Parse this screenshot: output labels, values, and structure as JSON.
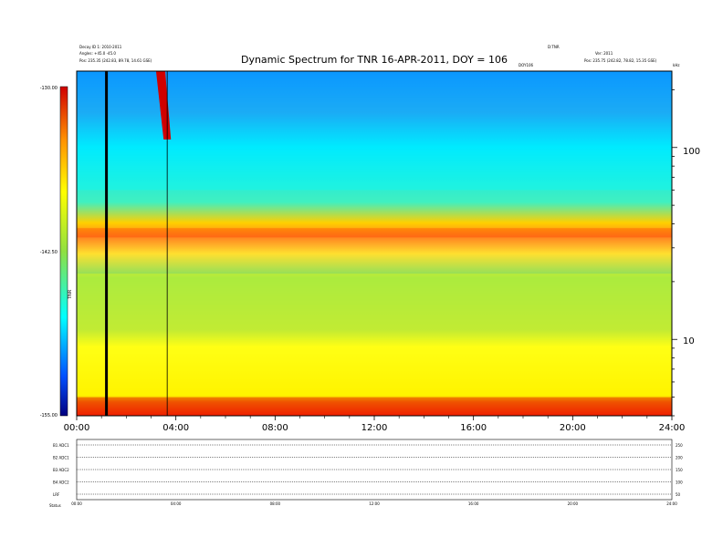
{
  "chart_data": {
    "type": "heatmap",
    "title": "Dynamic Spectrum for TNR 16-APR-2011, DOY = 106",
    "header_left": [
      "Decay ID 1: 2010-2011",
      "Angles: +45.0 -45.0",
      "Pos: 235.35 (242.83, 89.78, 14.61 GSE)"
    ],
    "header_right": [
      "D:TNR",
      "Ver: 2011",
      "Pos: 235.75 (242.82, 78.82, 15.35 GSE)"
    ],
    "header_center_tag": "DOY106",
    "x_axis": {
      "range_hours": [
        0,
        24
      ],
      "tick_labels": [
        "00:00",
        "04:00",
        "08:00",
        "12:00",
        "16:00",
        "20:00",
        "24:00"
      ]
    },
    "y_axis_right": {
      "scale": "log",
      "unit": "kHz",
      "range": [
        4,
        250
      ],
      "tick_labels": [
        "100",
        "10"
      ]
    },
    "colorbar": {
      "label": "TNR",
      "tick_labels": [
        "-130.00",
        "-142.50",
        "-155.00"
      ],
      "range": [
        -155.0,
        -130.0
      ],
      "colors": [
        "#d00000",
        "#ff4000",
        "#ffb000",
        "#ffff00",
        "#80e040",
        "#00ffff",
        "#0070ff",
        "#000080"
      ]
    },
    "bands_by_region": [
      {
        "name": "low-frequency cutoff",
        "from_freq": 4,
        "to_freq": 5,
        "level": -128.0
      },
      {
        "name": "background",
        "from_freq": 5,
        "to_freq": 22,
        "level": -141.0
      },
      {
        "name": "plasma line",
        "from_freq": 34,
        "to_freq": 38,
        "level": -133.0
      },
      {
        "name": "upper quiet",
        "from_freq": 60,
        "to_freq": 250,
        "level": -148.0
      }
    ],
    "events": [
      {
        "name": "black vertical stripe",
        "time": 1.2
      },
      {
        "name": "burst",
        "time_start": 3.2,
        "time_end": 3.8,
        "level": -130.0
      },
      {
        "name": "thin vertical line",
        "time": 3.65
      }
    ],
    "bottom_panel": {
      "row_labels": [
        "B1 ADC1",
        "B2 ADC1",
        "B3 ADC2",
        "B4 ADC2",
        "LRF"
      ],
      "right_labels": [
        "250",
        "200",
        "150",
        "100",
        "50"
      ],
      "tick_labels": [
        "00:00",
        "04:00",
        "08:00",
        "12:00",
        "16:00",
        "20:00",
        "24:00"
      ],
      "footer": "Status"
    }
  }
}
